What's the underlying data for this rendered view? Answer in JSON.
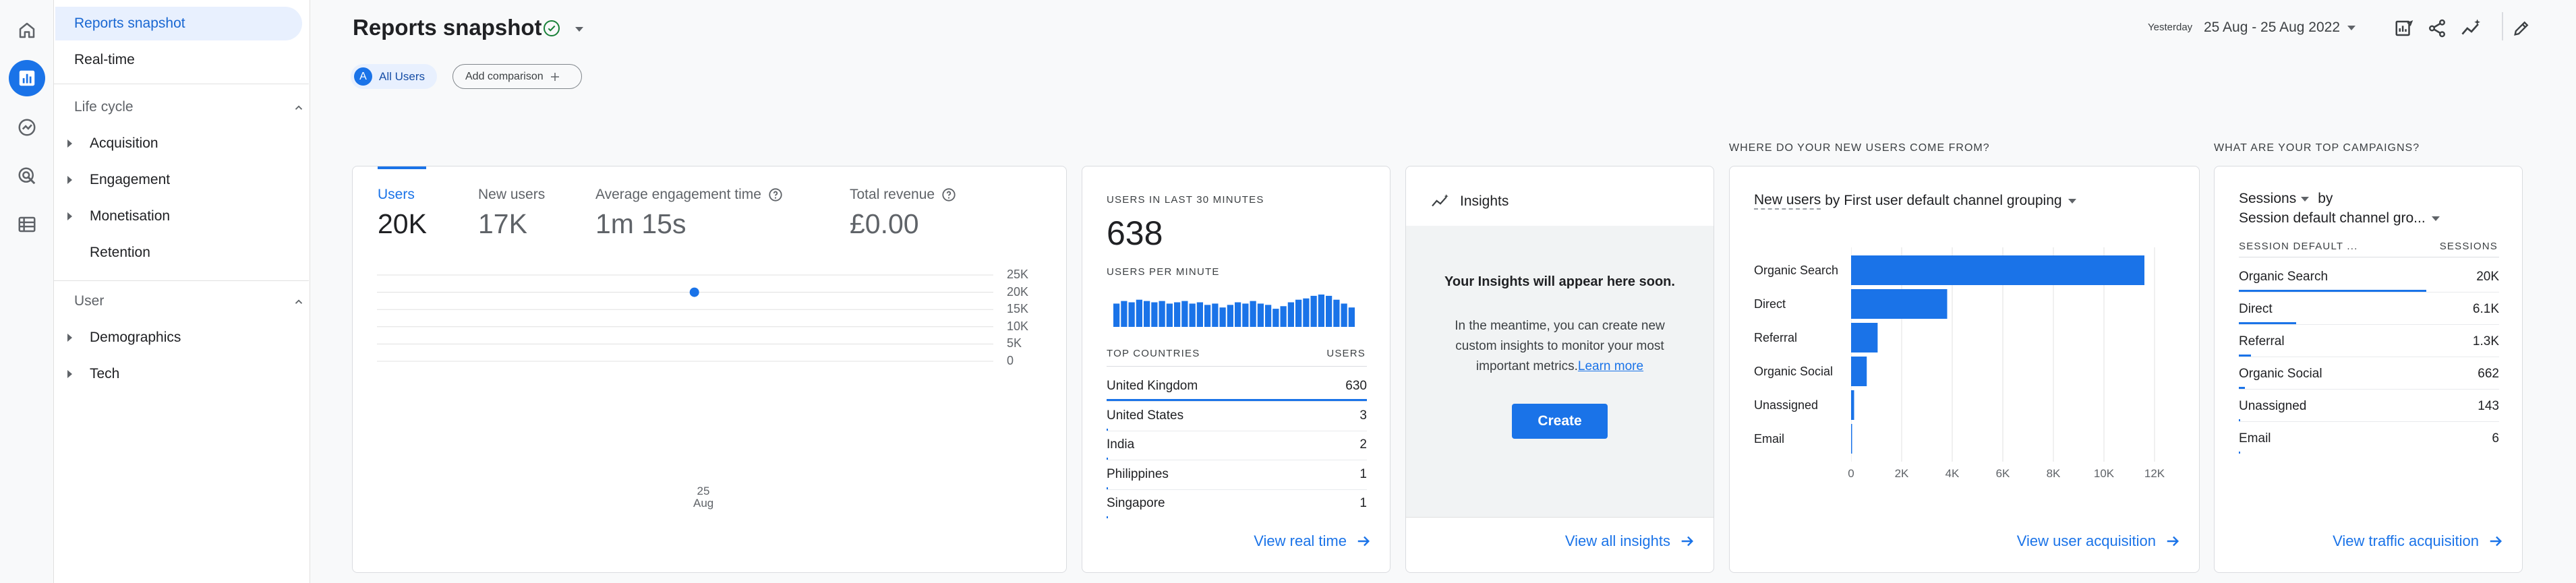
{
  "page": {
    "title": "Reports snapshot",
    "date_prefix": "Yesterday",
    "date_range": "25 Aug - 25 Aug 2022"
  },
  "comparison": {
    "avatar_letter": "A",
    "all_users": "All Users",
    "add_comparison": "Add comparison"
  },
  "nav": {
    "reports_snapshot": "Reports snapshot",
    "realtime": "Real-time",
    "lifecycle": "Life cycle",
    "acquisition": "Acquisition",
    "engagement": "Engagement",
    "monetisation": "Monetisation",
    "retention": "Retention",
    "user": "User",
    "demographics": "Demographics",
    "tech": "Tech"
  },
  "overview": {
    "metrics": [
      {
        "label": "Users",
        "value": "20K"
      },
      {
        "label": "New users",
        "value": "17K"
      },
      {
        "label": "Average engagement time",
        "value": "1m 15s"
      },
      {
        "label": "Total revenue",
        "value": "£0.00"
      }
    ],
    "y_ticks": [
      "25K",
      "20K",
      "15K",
      "10K",
      "5K",
      "0"
    ],
    "x_day": "25",
    "x_month": "Aug"
  },
  "chart_data": {
    "type": "scatter",
    "x": [
      "25 Aug"
    ],
    "series": [
      {
        "values": [
          20000
        ]
      }
    ],
    "ylim": [
      0,
      25000
    ],
    "grid": true
  },
  "realtime": {
    "users_label": "USERS IN LAST 30 MINUTES",
    "users_value": "638",
    "per_minute_label": "USERS PER MINUTE",
    "per_minute_bars": [
      18,
      20,
      19,
      21,
      20,
      19,
      20,
      18,
      19,
      20,
      18,
      19,
      17,
      18,
      15,
      17,
      19,
      18,
      20,
      18,
      17,
      14,
      16,
      19,
      21,
      22,
      24,
      25,
      24,
      21,
      18,
      15
    ],
    "countries_header": "TOP COUNTRIES",
    "users_header": "USERS",
    "countries": [
      {
        "name": "United Kingdom",
        "users": "630",
        "share": 1.0
      },
      {
        "name": "United States",
        "users": "3",
        "share": 0.005
      },
      {
        "name": "India",
        "users": "2",
        "share": 0.003
      },
      {
        "name": "Philippines",
        "users": "1",
        "share": 0.002
      },
      {
        "name": "Singapore",
        "users": "1",
        "share": 0.002
      }
    ],
    "link": "View real time"
  },
  "insights": {
    "title": "Insights",
    "heading": "Your Insights will appear here soon.",
    "body_lines": [
      "In the meantime, you can create new",
      "custom insights to monitor your most"
    ],
    "body_last": "important metrics.",
    "learn_more": "Learn more",
    "create": "Create",
    "link": "View all insights"
  },
  "acquisition_card": {
    "section_title": "WHERE DO YOUR NEW USERS COME FROM?",
    "metric": "New users",
    "by_label": "by First user default channel grouping",
    "channels": [
      {
        "name": "Organic Search",
        "value": 11600
      },
      {
        "name": "Direct",
        "value": 3800
      },
      {
        "name": "Referral",
        "value": 1050
      },
      {
        "name": "Organic Social",
        "value": 620
      },
      {
        "name": "Unassigned",
        "value": 120
      },
      {
        "name": "Email",
        "value": 5
      }
    ],
    "x_ticks": [
      "0",
      "2K",
      "4K",
      "6K",
      "8K",
      "10K",
      "12K"
    ],
    "link": "View user acquisition"
  },
  "campaigns_card": {
    "section_title": "WHAT ARE YOUR TOP CAMPAIGNS?",
    "metric": "Sessions",
    "by": "by",
    "dimension": "Session default channel gro...",
    "col_dimension": "SESSION DEFAULT ...",
    "col_sessions": "SESSIONS",
    "rows": [
      {
        "name": "Organic Search",
        "value": "20K",
        "share": 1.0
      },
      {
        "name": "Direct",
        "value": "6.1K",
        "share": 0.305
      },
      {
        "name": "Referral",
        "value": "1.3K",
        "share": 0.065
      },
      {
        "name": "Organic Social",
        "value": "662",
        "share": 0.033
      },
      {
        "name": "Unassigned",
        "value": "143",
        "share": 0.007
      },
      {
        "name": "Email",
        "value": "6",
        "share": 0.0003
      }
    ],
    "link": "View traffic acquisition"
  },
  "colors": {
    "accent": "#1a73e8",
    "link": "#1a73e8",
    "success": "#188038",
    "gridline": "#e0e0e0"
  }
}
